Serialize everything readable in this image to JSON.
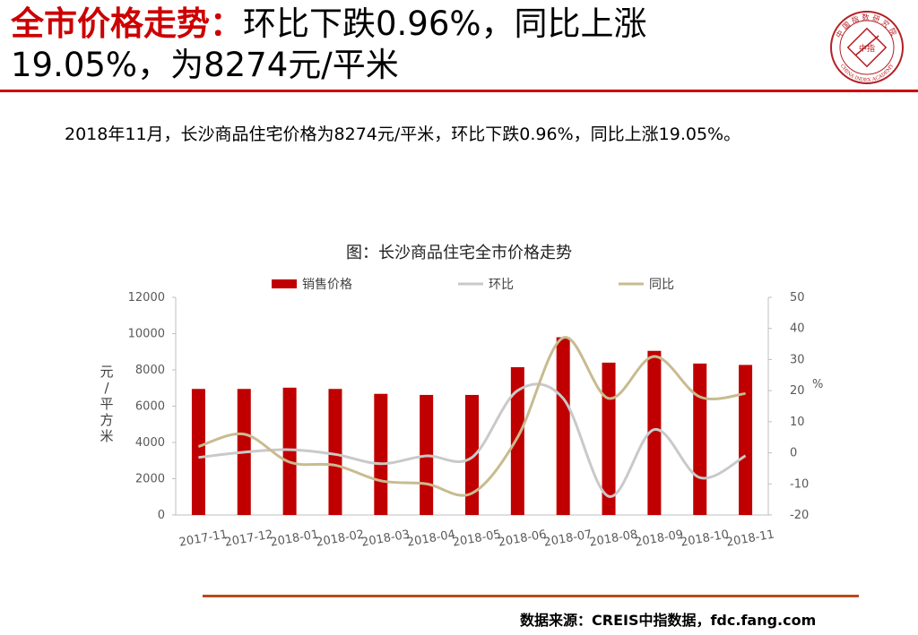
{
  "header": {
    "title_accent": "全市价格走势：",
    "title_rest": "环比下跌0.96%，同比上涨19.05%，为8274元/平米"
  },
  "summary": "2018年11月，长沙商品住宅价格为8274元/平米，环比下跌0.96%，同比上涨19.05%。",
  "source": "数据来源：CREIS中指数据，fdc.fang.com",
  "logo": {
    "top_text": "中国指数研究院",
    "center_text": "中指",
    "bottom_text": "CHINA INDEX ACADEMY"
  },
  "colors": {
    "accent": "#cc0000",
    "bar": "#c00000",
    "mom_line": "#c9c9c9",
    "yoy_line": "#c8bb8f",
    "bottom_rule": "#b84a1a"
  },
  "chart_data": {
    "type": "bar",
    "title": "图：长沙商品住宅全市价格走势",
    "categories": [
      "2017-11",
      "2017-12",
      "2018-01",
      "2018-02",
      "2018-03",
      "2018-04",
      "2018-05",
      "2018-06",
      "2018-07",
      "2018-08",
      "2018-09",
      "2018-10",
      "2018-11"
    ],
    "series": [
      {
        "name": "销售价格",
        "type": "bar",
        "axis": "left",
        "values": [
          6950,
          6950,
          7020,
          6950,
          6680,
          6620,
          6620,
          8150,
          9800,
          8400,
          9050,
          8350,
          8274
        ]
      },
      {
        "name": "环比",
        "type": "line",
        "axis": "right",
        "values": [
          -1.5,
          0.2,
          1.0,
          -0.5,
          -3.5,
          -1.0,
          -1.5,
          20.0,
          17.5,
          -14.0,
          7.5,
          -8.0,
          -0.96
        ]
      },
      {
        "name": "同比",
        "type": "line",
        "axis": "right",
        "values": [
          2.0,
          6.0,
          -3.0,
          -4.0,
          -9.0,
          -10.0,
          -13.0,
          5.0,
          37.0,
          17.5,
          31.0,
          18.0,
          19.05
        ]
      }
    ],
    "ylabel": "元/平方米",
    "ylabel_right": "%",
    "ylim": [
      0,
      12000
    ],
    "ylim_right": [
      -20,
      50
    ],
    "yticks": [
      "0",
      "2000",
      "4000",
      "6000",
      "8000",
      "10000",
      "12000"
    ],
    "yticks_right": [
      "-20",
      "-10",
      "0",
      "10",
      "20",
      "30",
      "40",
      "50"
    ],
    "legend": "top",
    "grid": false
  }
}
